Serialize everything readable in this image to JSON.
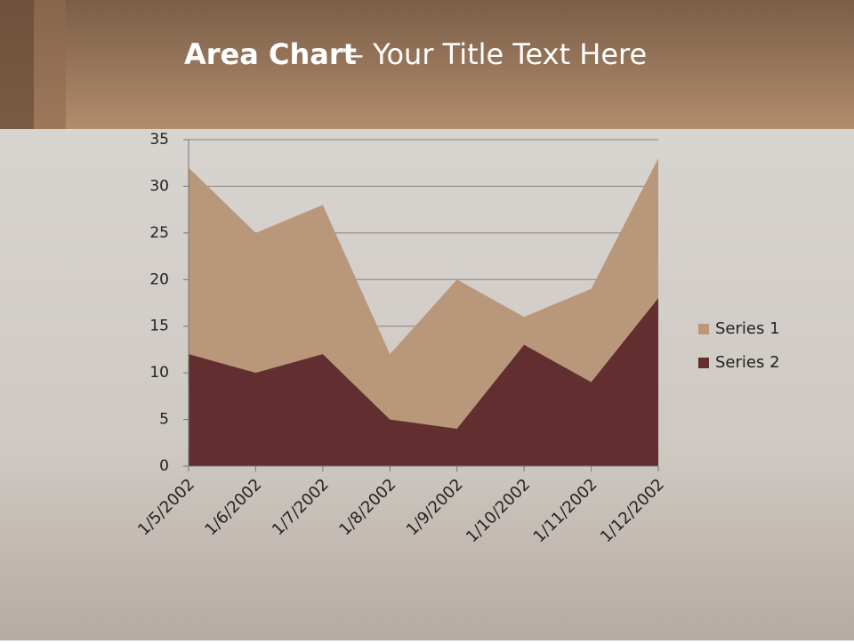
{
  "chart_data": {
    "type": "area",
    "title_emphasis": "Area Chart",
    "title": "– Your Title Text Here",
    "categories": [
      "1/5/2002",
      "1/6/2002",
      "1/7/2002",
      "1/8/2002",
      "1/9/2002",
      "1/10/2002",
      "1/11/2002",
      "1/12/2002"
    ],
    "series": [
      {
        "name": "Series 1",
        "color": "#b9977b",
        "values": [
          32,
          25,
          28,
          12,
          20,
          16,
          19,
          33
        ]
      },
      {
        "name": "Series 2",
        "color": "#632e30",
        "values": [
          12,
          10,
          12,
          5,
          4,
          13,
          9,
          18
        ]
      }
    ],
    "ylim": [
      0,
      35
    ],
    "yticks": [
      0,
      5,
      10,
      15,
      20,
      25,
      30,
      35
    ],
    "grid": true,
    "legend": "right"
  }
}
